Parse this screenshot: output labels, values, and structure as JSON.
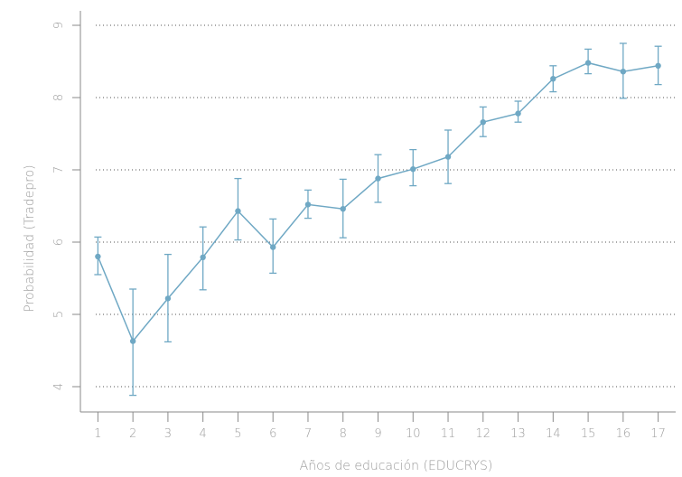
{
  "chart_data": {
    "type": "line",
    "xlabel": "Años de educación (EDUCRYS)",
    "ylabel": "Probabilidad (Tradepro)",
    "x": [
      1,
      2,
      3,
      4,
      5,
      6,
      7,
      8,
      9,
      10,
      11,
      12,
      13,
      14,
      15,
      16,
      17
    ],
    "x_tick_labels": [
      "1",
      "2",
      "3",
      "4",
      "5",
      "6",
      "7",
      "8",
      "9",
      "10",
      "11",
      "12",
      "13",
      "14",
      "15",
      "16",
      "17"
    ],
    "y_ticks": [
      4,
      5,
      6,
      7,
      8,
      9
    ],
    "y_tick_labels": [
      "4",
      "5",
      "6",
      "7",
      "8",
      "9"
    ],
    "xlim": [
      0.5,
      17.5
    ],
    "ylim": [
      3.65,
      9.2
    ],
    "grid": "horizontal-dotted",
    "series": [
      {
        "values": [
          5.8,
          4.63,
          5.22,
          5.79,
          6.43,
          5.93,
          6.52,
          6.46,
          6.88,
          7.01,
          7.18,
          7.66,
          7.78,
          8.26,
          8.48,
          8.36,
          8.44
        ],
        "lower": [
          5.55,
          3.88,
          4.62,
          5.34,
          6.03,
          5.57,
          6.33,
          6.06,
          6.55,
          6.78,
          6.81,
          7.46,
          7.66,
          8.08,
          8.33,
          7.99,
          8.18
        ],
        "upper": [
          6.07,
          5.35,
          5.83,
          6.21,
          6.88,
          6.32,
          6.72,
          6.87,
          7.21,
          7.28,
          7.55,
          7.87,
          7.95,
          8.44,
          8.67,
          8.75,
          8.71
        ],
        "color": "#6fa8c4"
      }
    ]
  }
}
